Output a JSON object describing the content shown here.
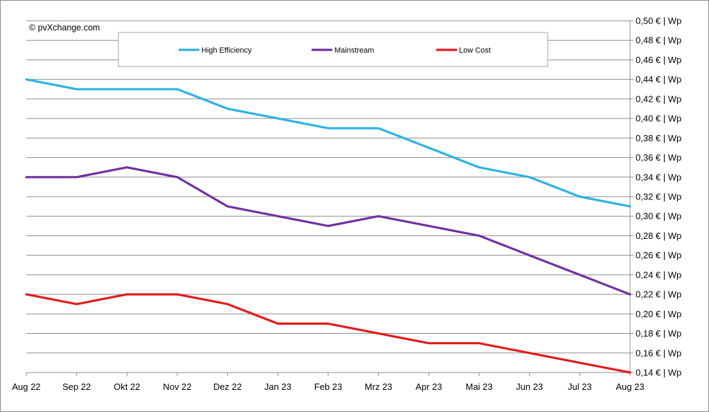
{
  "chart_data": {
    "type": "line",
    "title": "",
    "xlabel": "",
    "ylabel": "",
    "copyright": "© pvXchange.com",
    "categories": [
      "Aug 22",
      "Sep 22",
      "Okt 22",
      "Nov 22",
      "Dez 22",
      "Jan 23",
      "Feb 23",
      "Mrz 23",
      "Apr 23",
      "Mai 23",
      "Jun 23",
      "Jul 23",
      "Aug 23"
    ],
    "ylim": [
      0.14,
      0.5
    ],
    "y_ticks": [
      0.14,
      0.16,
      0.18,
      0.2,
      0.22,
      0.24,
      0.26,
      0.28,
      0.3,
      0.32,
      0.34,
      0.36,
      0.38,
      0.4,
      0.42,
      0.44,
      0.46,
      0.48,
      0.5
    ],
    "y_tick_labels": [
      "0,14 € | Wp",
      "0,16 € | Wp",
      "0,18 € | Wp",
      "0,20 € | Wp",
      "0,22 € | Wp",
      "0,24 € | Wp",
      "0,26 € | Wp",
      "0,28 € | Wp",
      "0,30 € | Wp",
      "0,32 € | Wp",
      "0,34 € | Wp",
      "0,36 € | Wp",
      "0,38 € | Wp",
      "0,40 € | Wp",
      "0,42 € | Wp",
      "0,44 € | Wp",
      "0,46 € | Wp",
      "0,48 € | Wp",
      "0,50 € | Wp"
    ],
    "y_axis_side": "right",
    "grid": true,
    "legend_position": "top",
    "series": [
      {
        "name": "High Efficiency",
        "color": "#2bb3e3",
        "values": [
          0.44,
          0.43,
          0.43,
          0.43,
          0.41,
          0.4,
          0.39,
          0.39,
          0.37,
          0.35,
          0.34,
          0.32,
          0.31
        ]
      },
      {
        "name": "Mainstream",
        "color": "#7030a0",
        "values": [
          0.34,
          0.34,
          0.35,
          0.34,
          0.31,
          0.3,
          0.29,
          0.3,
          0.29,
          0.28,
          0.26,
          0.24,
          0.22
        ]
      },
      {
        "name": "Low Cost",
        "color": "#e31a1c",
        "values": [
          0.22,
          0.21,
          0.22,
          0.22,
          0.21,
          0.19,
          0.19,
          0.18,
          0.17,
          0.17,
          0.16,
          0.15,
          0.14
        ]
      }
    ]
  }
}
